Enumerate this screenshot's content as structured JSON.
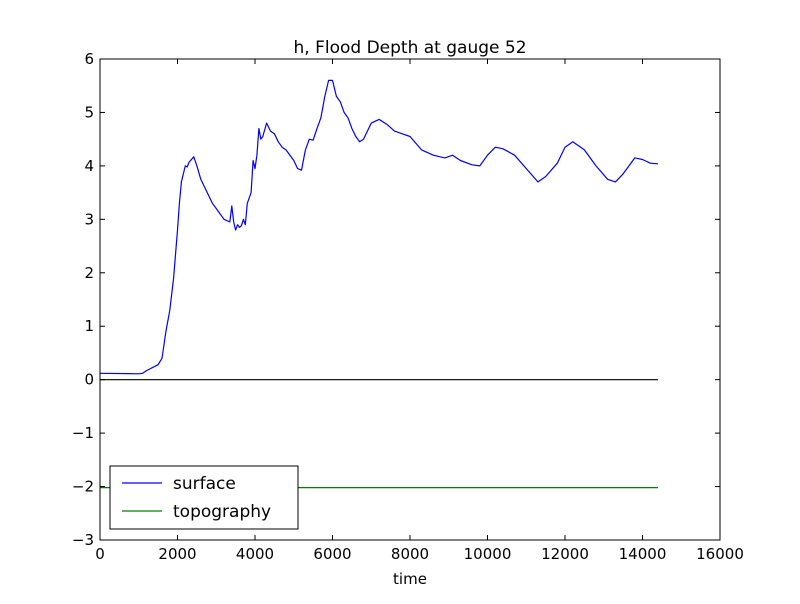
{
  "chart_data": {
    "type": "line",
    "title": "h, Flood Depth at gauge 52",
    "xlabel": "time",
    "ylabel": "",
    "xlim": [
      0,
      16000
    ],
    "ylim": [
      -3,
      6
    ],
    "xticks": [
      0,
      2000,
      4000,
      6000,
      8000,
      10000,
      12000,
      14000,
      16000
    ],
    "xtick_labels": [
      "0",
      "2000",
      "4000",
      "6000",
      "8000",
      "10000",
      "12000",
      "14000",
      "16000"
    ],
    "yticks": [
      -3,
      -2,
      -1,
      0,
      1,
      2,
      3,
      4,
      5,
      6
    ],
    "ytick_labels": [
      "−3",
      "−2",
      "−1",
      "0",
      "1",
      "2",
      "3",
      "4",
      "5",
      "6"
    ],
    "grid": false,
    "legend_position": "lower-left",
    "series": [
      {
        "name": "surface",
        "color": "#0000ff",
        "x": [
          0,
          1000,
          1100,
          1200,
          1500,
          1600,
          1700,
          1800,
          1900,
          2000,
          2050,
          2100,
          2200,
          2250,
          2300,
          2420,
          2500,
          2600,
          2800,
          2900,
          3000,
          3200,
          3350,
          3400,
          3450,
          3500,
          3550,
          3600,
          3650,
          3700,
          3750,
          3800,
          3900,
          3950,
          4000,
          4050,
          4100,
          4150,
          4200,
          4300,
          4400,
          4500,
          4600,
          4700,
          4800,
          5000,
          5100,
          5200,
          5300,
          5400,
          5500,
          5600,
          5700,
          5800,
          5900,
          6000,
          6100,
          6200,
          6300,
          6400,
          6500,
          6600,
          6700,
          6800,
          6900,
          7000,
          7200,
          7400,
          7600,
          7800,
          8000,
          8300,
          8600,
          8900,
          9100,
          9300,
          9600,
          9800,
          10000,
          10200,
          10400,
          10700,
          11000,
          11300,
          11500,
          11800,
          12000,
          12200,
          12500,
          12800,
          13100,
          13300,
          13500,
          13800,
          14000,
          14200,
          14400
        ],
        "y": [
          0.12,
          0.11,
          0.12,
          0.17,
          0.28,
          0.4,
          0.9,
          1.3,
          1.9,
          2.8,
          3.3,
          3.7,
          4.0,
          3.98,
          4.07,
          4.17,
          4.0,
          3.75,
          3.45,
          3.3,
          3.2,
          3.0,
          2.95,
          3.25,
          2.95,
          2.8,
          2.9,
          2.85,
          2.88,
          3.0,
          2.9,
          3.3,
          3.5,
          4.1,
          3.95,
          4.2,
          4.7,
          4.5,
          4.55,
          4.8,
          4.65,
          4.6,
          4.45,
          4.35,
          4.3,
          4.1,
          3.95,
          3.92,
          4.3,
          4.5,
          4.48,
          4.7,
          4.9,
          5.3,
          5.6,
          5.6,
          5.3,
          5.2,
          5.0,
          4.9,
          4.7,
          4.55,
          4.45,
          4.5,
          4.65,
          4.8,
          4.87,
          4.78,
          4.65,
          4.6,
          4.55,
          4.3,
          4.2,
          4.15,
          4.2,
          4.1,
          4.02,
          4.0,
          4.2,
          4.35,
          4.32,
          4.2,
          3.95,
          3.7,
          3.8,
          4.05,
          4.35,
          4.45,
          4.3,
          4.0,
          3.75,
          3.7,
          3.85,
          4.15,
          4.12,
          4.05,
          4.04
        ]
      },
      {
        "name": "topography",
        "color": "#008000",
        "x": [
          0,
          14400
        ],
        "y": [
          -2.02,
          -2.02
        ]
      }
    ],
    "reference_line": {
      "y": 0,
      "x": [
        0,
        14400
      ],
      "color": "#000000"
    }
  }
}
